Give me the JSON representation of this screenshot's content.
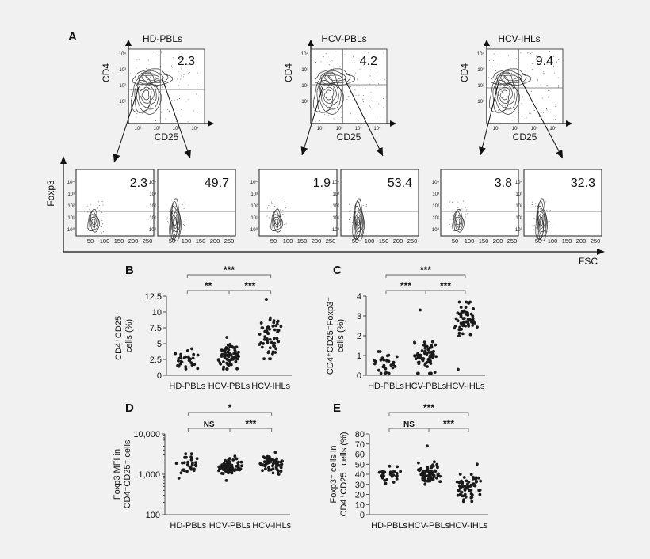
{
  "panel_a": {
    "letter": "A",
    "top_plots": [
      {
        "title": "HD-PBLs",
        "value": "2.3",
        "ylabel": "CD4",
        "xlabel": "CD25"
      },
      {
        "title": "HCV-PBLs",
        "value": "4.2",
        "ylabel": "CD4",
        "xlabel": "CD25"
      },
      {
        "title": "HCV-IHLs",
        "value": "9.4",
        "ylabel": "CD4",
        "xlabel": "CD25"
      }
    ],
    "bottom_values": [
      "2.3",
      "49.7",
      "1.9",
      "53.4",
      "3.8",
      "32.3"
    ],
    "bottom_ylabel": "Foxp3",
    "bottom_xlabel": "FSC",
    "log_ticks": [
      "10⁰",
      "10¹",
      "10²",
      "10³",
      "10⁴"
    ],
    "fsc_ticks": [
      "50",
      "100",
      "150",
      "200",
      "250"
    ]
  },
  "chart_data": [
    {
      "letter": "B",
      "type": "scatter",
      "ylabel_line1": "CD4⁺CD25⁺",
      "ylabel_line2": "cells (%)",
      "categories": [
        "HD-PBLs",
        "HCV-PBLs",
        "HCV-IHLs"
      ],
      "yticks": [
        "0",
        "2.5",
        "5",
        "7.5",
        "10",
        "12.5"
      ],
      "ylim": [
        0,
        12.5
      ],
      "groups": [
        {
          "name": "HD-PBLs",
          "n": 28,
          "median": 2.5,
          "spread": 0.8,
          "min": 1.0,
          "max": 4.2
        },
        {
          "name": "HCV-PBLs",
          "n": 75,
          "median": 2.8,
          "spread": 0.9,
          "min": 1.0,
          "max": 6.0
        },
        {
          "name": "HCV-IHLs",
          "n": 55,
          "median": 5.5,
          "spread": 2.0,
          "min": 2.6,
          "max": 12.0
        }
      ],
      "brackets": [
        {
          "from": 0,
          "to": 2,
          "label": "***",
          "level": 2
        },
        {
          "from": 0,
          "to": 1,
          "label": "**",
          "level": 1
        },
        {
          "from": 1,
          "to": 2,
          "label": "***",
          "level": 1
        }
      ]
    },
    {
      "letter": "C",
      "type": "scatter",
      "ylabel_line1": "CD4⁺CD25⁻Foxp3⁻",
      "ylabel_line2": "cells (%)",
      "categories": [
        "HD-PBLs",
        "HCV-PBLs",
        "HCV-IHLs"
      ],
      "yticks": [
        "0",
        "1",
        "2",
        "3",
        "4"
      ],
      "ylim": [
        0,
        4
      ],
      "groups": [
        {
          "name": "HD-PBLs",
          "n": 28,
          "median": 0.6,
          "spread": 0.3,
          "min": 0.1,
          "max": 1.2
        },
        {
          "name": "HCV-PBLs",
          "n": 75,
          "median": 0.95,
          "spread": 0.45,
          "min": 0.1,
          "max": 3.3
        },
        {
          "name": "HCV-IHLs",
          "n": 55,
          "median": 2.6,
          "spread": 0.5,
          "min": 0.3,
          "max": 3.7
        }
      ],
      "brackets": [
        {
          "from": 0,
          "to": 2,
          "label": "***",
          "level": 2
        },
        {
          "from": 0,
          "to": 1,
          "label": "***",
          "level": 1
        },
        {
          "from": 1,
          "to": 2,
          "label": "***",
          "level": 1
        }
      ]
    },
    {
      "letter": "D",
      "type": "scatter",
      "ylabel_line1": "Foxp3 MFI in",
      "ylabel_line2": "CD4⁺CD25⁺ cells",
      "categories": [
        "HD-PBLs",
        "HCV-PBLs",
        "HCV-IHLs"
      ],
      "yticks": [
        "100",
        "1,000",
        "10,000"
      ],
      "yscale": "log",
      "ylim": [
        100,
        10000
      ],
      "groups": [
        {
          "name": "HD-PBLs",
          "n": 32,
          "median": 1800,
          "spread": 0.13,
          "min": 800,
          "max": 3200
        },
        {
          "name": "HCV-PBLs",
          "n": 75,
          "median": 1500,
          "spread": 0.1,
          "min": 700,
          "max": 2800
        },
        {
          "name": "HCV-IHLs",
          "n": 60,
          "median": 1800,
          "spread": 0.1,
          "min": 1000,
          "max": 3500
        }
      ],
      "brackets": [
        {
          "from": 0,
          "to": 2,
          "label": "*",
          "level": 2
        },
        {
          "from": 0,
          "to": 1,
          "label": "NS",
          "level": 1
        },
        {
          "from": 1,
          "to": 2,
          "label": "***",
          "level": 1
        }
      ]
    },
    {
      "letter": "E",
      "type": "scatter",
      "ylabel_line1": "Foxp3⁺ cells in",
      "ylabel_line2": "CD4⁺CD25⁺ cells (%)",
      "categories": [
        "HD-PBLs",
        "HCV-PBLs",
        "HCV-IHLs"
      ],
      "yticks": [
        "0",
        "10",
        "20",
        "30",
        "40",
        "50",
        "60",
        "70",
        "80"
      ],
      "ylim": [
        0,
        80
      ],
      "groups": [
        {
          "name": "HD-PBLs",
          "n": 30,
          "median": 39,
          "spread": 4,
          "min": 31,
          "max": 48
        },
        {
          "name": "HCV-PBLs",
          "n": 75,
          "median": 41,
          "spread": 5,
          "min": 30,
          "max": 68
        },
        {
          "name": "HCV-IHLs",
          "n": 60,
          "median": 27,
          "spread": 6,
          "min": 13,
          "max": 50
        }
      ],
      "brackets": [
        {
          "from": 0,
          "to": 2,
          "label": "***",
          "level": 2
        },
        {
          "from": 0,
          "to": 1,
          "label": "NS",
          "level": 1
        },
        {
          "from": 1,
          "to": 2,
          "label": "***",
          "level": 1
        }
      ]
    }
  ]
}
